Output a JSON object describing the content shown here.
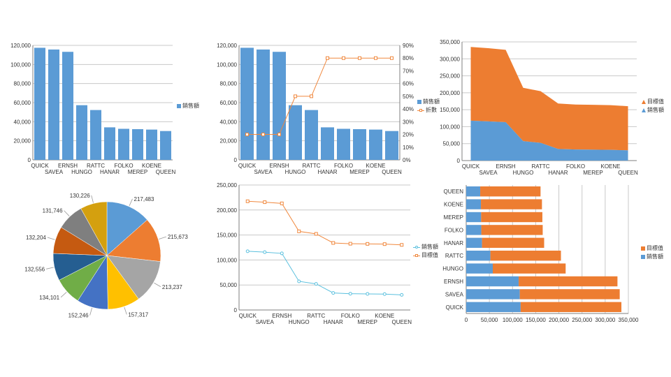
{
  "colors": {
    "blue": "#5b9bd5",
    "orange": "#ed7d31",
    "grid": "#c8c8c8",
    "axis": "#7f7f7f",
    "line_blue": "#5bc0de",
    "line_orange": "#f0883e",
    "pie": [
      "#5b9bd5",
      "#ed7d31",
      "#a5a5a5",
      "#ffc000",
      "#4472c4",
      "#70ad47",
      "#255e91",
      "#c55a11",
      "#7f7f7f",
      "#d4a00f"
    ]
  },
  "chart_data": [
    {
      "type": "bar",
      "categories": [
        "QUICK",
        "SAVEA",
        "ERNSH",
        "HUNGO",
        "RATTC",
        "HANAR",
        "FOLKO",
        "MEREP",
        "KOENE",
        "QUEEN"
      ],
      "series": [
        {
          "name": "銷售額",
          "values": [
            117483,
            115673,
            113237,
            57317,
            52246,
            34101,
            32556,
            32204,
            31746,
            30226
          ]
        }
      ],
      "ylim": [
        0,
        120000
      ],
      "yticks": [
        "0",
        "20,000",
        "40,000",
        "60,000",
        "80,000",
        "100,000",
        "120,000"
      ],
      "legend": "right",
      "grid": true
    },
    {
      "type": "bar",
      "categories": [
        "QUICK",
        "SAVEA",
        "ERNSH",
        "HUNGO",
        "RATTC",
        "HANAR",
        "FOLKO",
        "MEREP",
        "KOENE",
        "QUEEN"
      ],
      "series": [
        {
          "name": "銷售額",
          "type": "bar",
          "values": [
            117483,
            115673,
            113237,
            57317,
            52246,
            34101,
            32556,
            32204,
            31746,
            30226
          ]
        },
        {
          "name": "折數",
          "type": "line",
          "axis": "secondary",
          "values": [
            0.2,
            0.2,
            0.2,
            0.5,
            0.5,
            0.8,
            0.8,
            0.8,
            0.8,
            0.8
          ]
        }
      ],
      "ylim": [
        0,
        120000
      ],
      "yticks": [
        "0",
        "20,000",
        "40,000",
        "60,000",
        "80,000",
        "100,000",
        "120,000"
      ],
      "y2lim": [
        0,
        0.9
      ],
      "y2ticks": [
        "0%",
        "10%",
        "20%",
        "30%",
        "40%",
        "50%",
        "60%",
        "70%",
        "80%",
        "90%"
      ],
      "legend": "right",
      "grid": true
    },
    {
      "type": "area",
      "stacked": true,
      "categories": [
        "QUICK",
        "SAVEA",
        "ERNSH",
        "HUNGO",
        "RATTC",
        "HANAR",
        "FOLKO",
        "MEREP",
        "KOENE",
        "QUEEN"
      ],
      "series": [
        {
          "name": "目標值",
          "values": [
            217483,
            215673,
            213237,
            157317,
            152246,
            134101,
            132556,
            132204,
            131746,
            130226
          ]
        },
        {
          "name": "銷售額",
          "values": [
            117483,
            115673,
            113237,
            57317,
            52246,
            34101,
            32556,
            32204,
            31746,
            30226
          ]
        }
      ],
      "ylim": [
        0,
        350000
      ],
      "yticks": [
        "0",
        "50,000",
        "100,000",
        "150,000",
        "200,000",
        "250,000",
        "300,000",
        "350,000"
      ],
      "legend": "right",
      "grid": true
    },
    {
      "type": "pie",
      "values": [
        217483,
        215673,
        213237,
        157317,
        152246,
        134101,
        132556,
        132204,
        131746,
        130226
      ],
      "labels": [
        "217,483",
        "215,673",
        "213,237",
        "157,317",
        "152,246",
        "134,101",
        "132,556",
        "132,204",
        "131,746",
        "130,226"
      ]
    },
    {
      "type": "line",
      "categories": [
        "QUICK",
        "SAVEA",
        "ERNSH",
        "HUNGO",
        "RATTC",
        "HANAR",
        "FOLKO",
        "MEREP",
        "KOENE",
        "QUEEN"
      ],
      "series": [
        {
          "name": "銷售額",
          "values": [
            117483,
            115673,
            113237,
            57317,
            52246,
            34101,
            32556,
            32204,
            31746,
            30226
          ]
        },
        {
          "name": "目標值",
          "values": [
            217483,
            215673,
            213237,
            157317,
            152246,
            134101,
            132556,
            132204,
            131746,
            130226
          ]
        }
      ],
      "ylim": [
        0,
        250000
      ],
      "yticks": [
        "0",
        "50,000",
        "100,000",
        "150,000",
        "200,000",
        "250,000"
      ],
      "legend": "right",
      "grid": true
    },
    {
      "type": "bar",
      "orientation": "horizontal",
      "stacked": true,
      "categories": [
        "QUICK",
        "SAVEA",
        "ERNSH",
        "HUNGO",
        "RATTC",
        "HANAR",
        "FOLKO",
        "MEREP",
        "KOENE",
        "QUEEN"
      ],
      "series": [
        {
          "name": "銷售額",
          "values": [
            117483,
            115673,
            113237,
            57317,
            52246,
            34101,
            32556,
            32204,
            31746,
            30226
          ]
        },
        {
          "name": "目標值",
          "values": [
            217483,
            215673,
            213237,
            157317,
            152246,
            134101,
            132556,
            132204,
            131746,
            130226
          ]
        }
      ],
      "xlim": [
        0,
        350000
      ],
      "xticks": [
        "0",
        "50,000",
        "100,000",
        "150,000",
        "200,000",
        "250,000",
        "300,000",
        "350,000"
      ],
      "legend": "right",
      "grid": true
    }
  ]
}
